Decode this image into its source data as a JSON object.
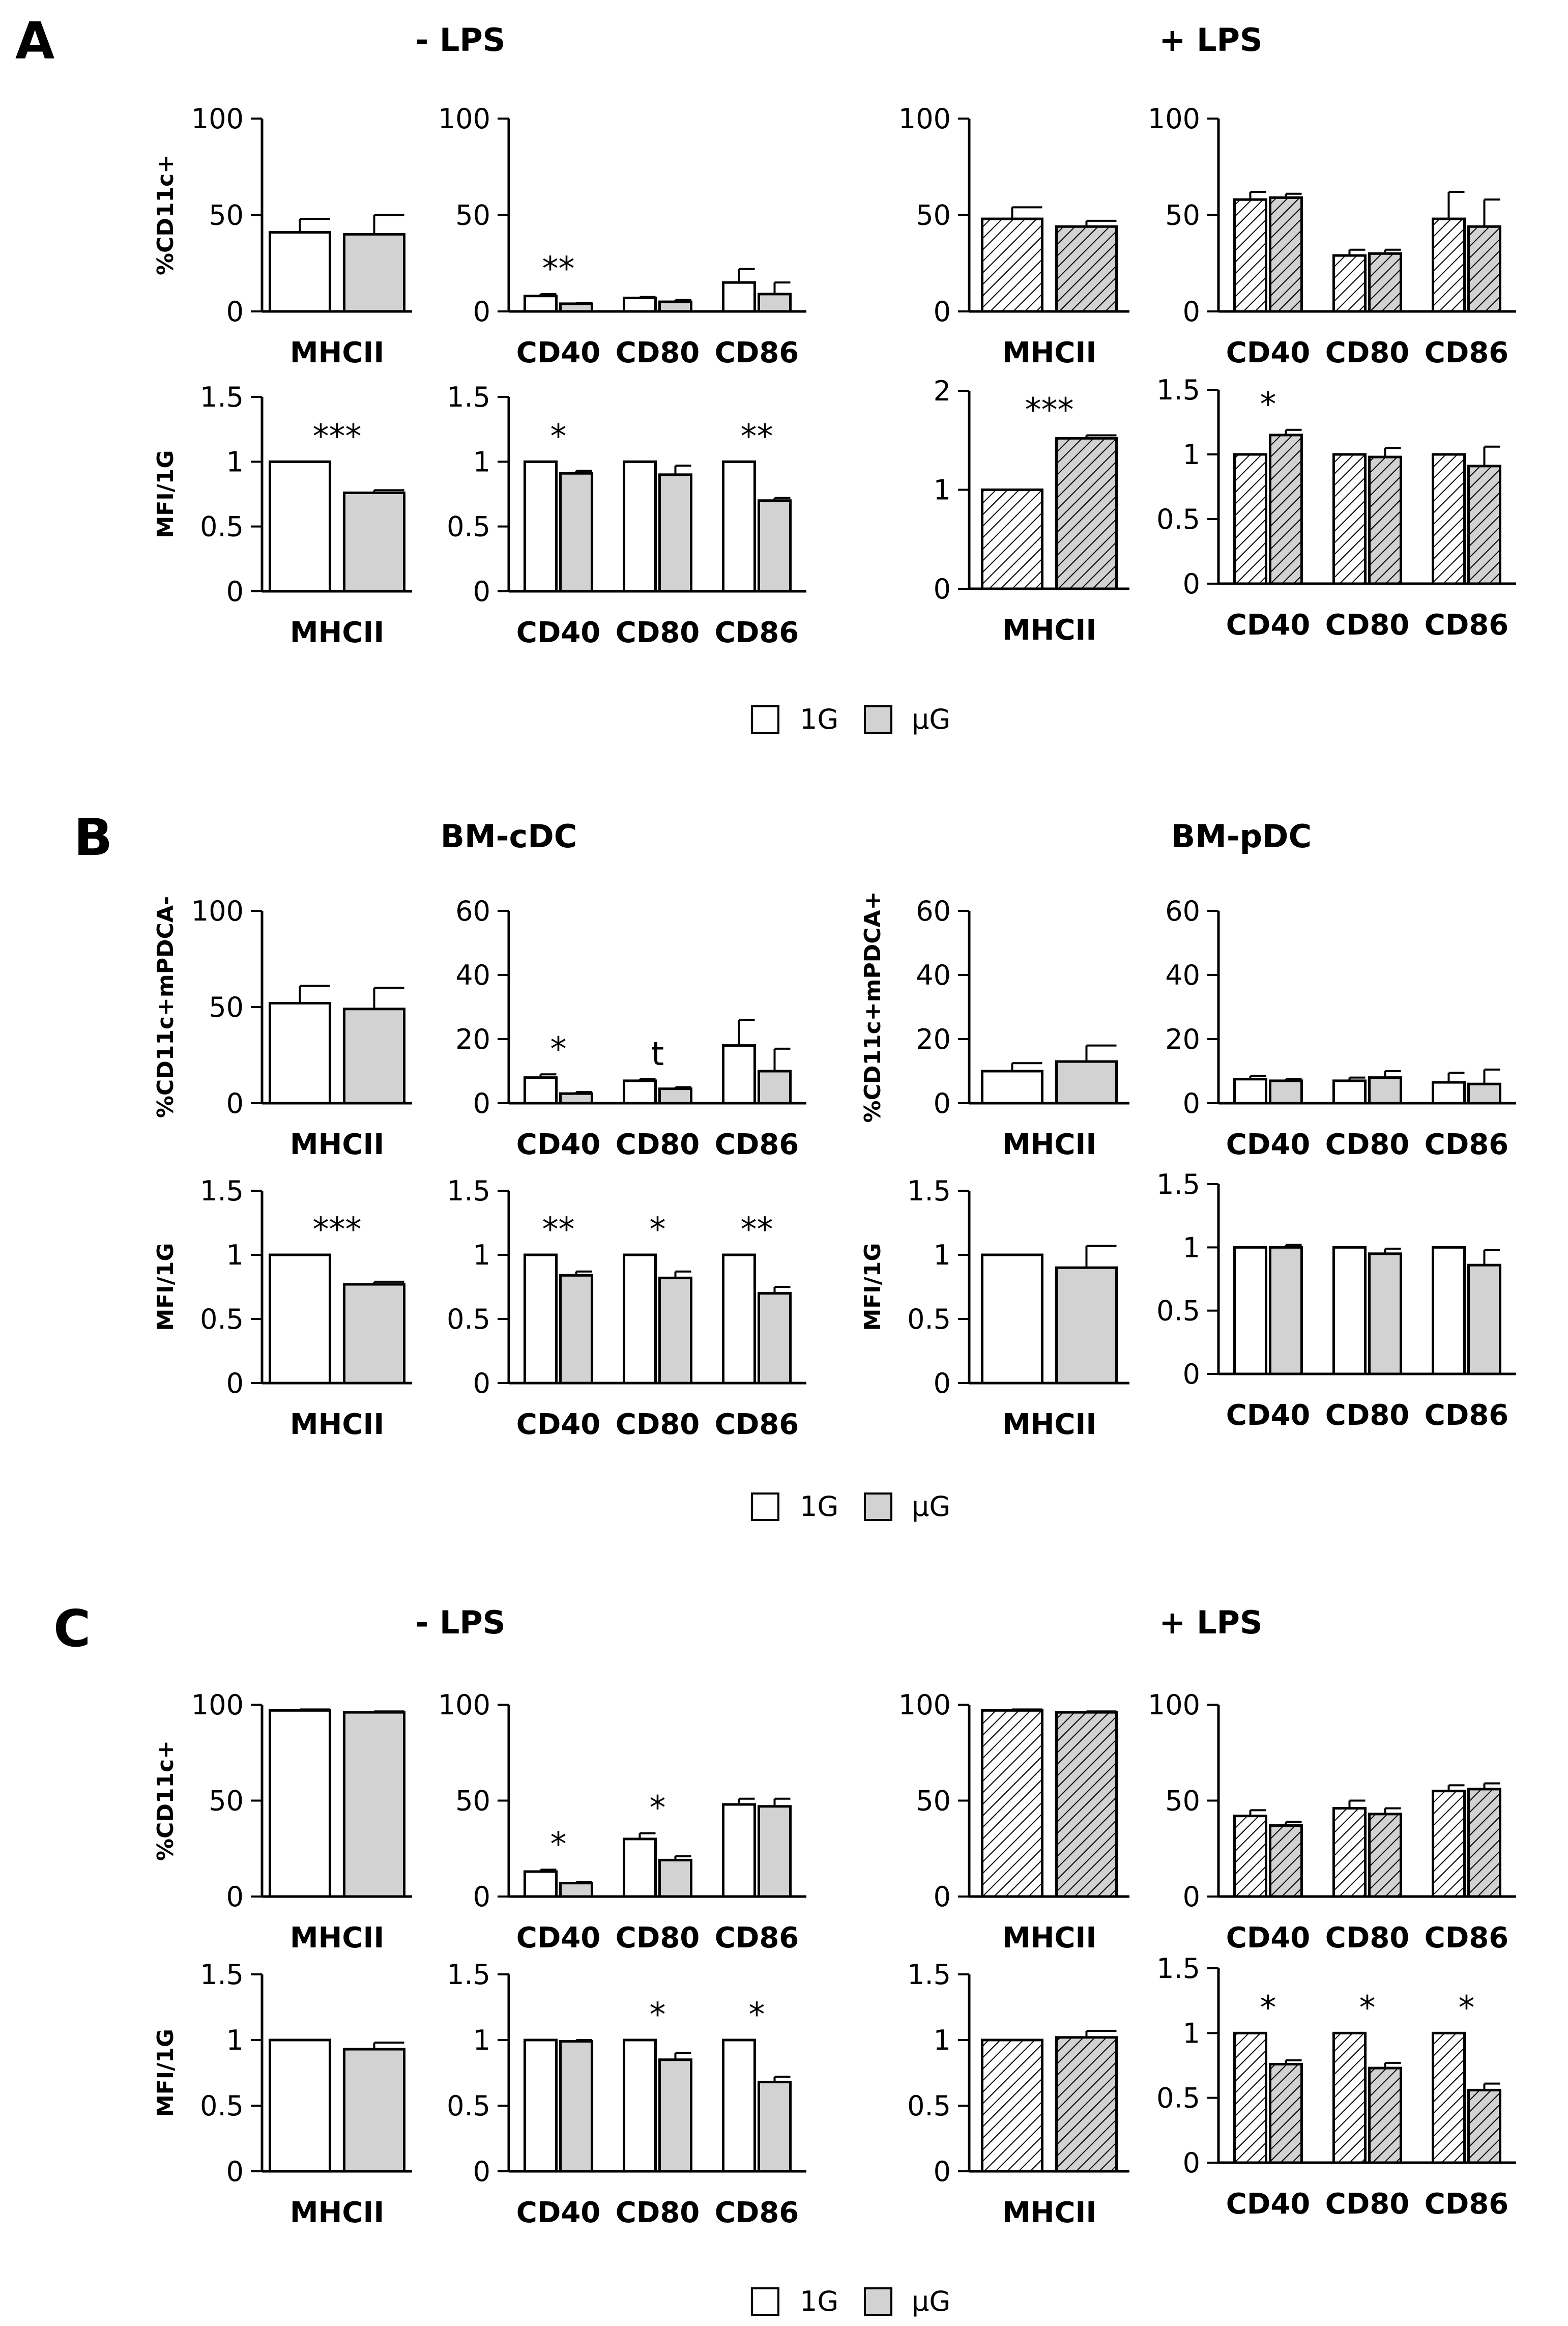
{
  "figure": {
    "colors": {
      "white": "#ffffff",
      "grey": "#d2d2d2",
      "axis": "#000000"
    },
    "panels": [
      {
        "letter": "A",
        "left_title": "- LPS",
        "right_title": "+ LPS",
        "legend": {
          "white_label": "1G",
          "grey_label": "μG"
        }
      },
      {
        "letter": "B",
        "left_title": "BM-cDC",
        "right_title": "BM-pDC",
        "legend": {
          "white_label": "1G",
          "grey_label": "μG"
        }
      },
      {
        "letter": "C",
        "left_title": "- LPS",
        "right_title": "+ LPS",
        "legend": {
          "white_label": "1G",
          "grey_label": "μG"
        }
      }
    ]
  },
  "chart_data": [
    {
      "panel": "A",
      "row": "percent",
      "condition": "- LPS",
      "type": "bar",
      "ylabel": "%CD11c+",
      "ylim": [
        0,
        100
      ],
      "yticks": [
        0,
        50,
        100
      ],
      "categories": [
        "MHCII"
      ],
      "series": [
        {
          "name": "1G",
          "values": [
            41
          ],
          "errors": [
            7
          ]
        },
        {
          "name": "μG",
          "values": [
            40
          ],
          "errors": [
            10
          ]
        }
      ],
      "hatched": false,
      "annotations": [
        ""
      ]
    },
    {
      "panel": "A",
      "row": "percent",
      "condition": "- LPS",
      "type": "bar",
      "ylabel": "",
      "ylim": [
        0,
        100
      ],
      "yticks": [
        0,
        50,
        100
      ],
      "categories": [
        "CD40",
        "CD80",
        "CD86"
      ],
      "series": [
        {
          "name": "1G",
          "values": [
            8,
            7,
            15
          ],
          "errors": [
            1,
            0.5,
            7
          ]
        },
        {
          "name": "μG",
          "values": [
            4,
            5,
            9
          ],
          "errors": [
            0.5,
            1,
            6
          ]
        }
      ],
      "hatched": false,
      "annotations": [
        "**",
        "",
        ""
      ]
    },
    {
      "panel": "A",
      "row": "percent",
      "condition": "+ LPS",
      "type": "bar",
      "ylabel": "",
      "ylim": [
        0,
        100
      ],
      "yticks": [
        0,
        50,
        100
      ],
      "categories": [
        "MHCII"
      ],
      "series": [
        {
          "name": "1G",
          "values": [
            48
          ],
          "errors": [
            6
          ]
        },
        {
          "name": "μG",
          "values": [
            44
          ],
          "errors": [
            3
          ]
        }
      ],
      "hatched": true,
      "annotations": [
        ""
      ]
    },
    {
      "panel": "A",
      "row": "percent",
      "condition": "+ LPS",
      "type": "bar",
      "ylabel": "",
      "ylim": [
        0,
        100
      ],
      "yticks": [
        0,
        50,
        100
      ],
      "categories": [
        "CD40",
        "CD80",
        "CD86"
      ],
      "series": [
        {
          "name": "1G",
          "values": [
            58,
            29,
            48
          ],
          "errors": [
            4,
            3,
            14
          ]
        },
        {
          "name": "μG",
          "values": [
            59,
            30,
            44
          ],
          "errors": [
            2,
            2,
            14
          ]
        }
      ],
      "hatched": true,
      "annotations": [
        "",
        "",
        ""
      ]
    },
    {
      "panel": "A",
      "row": "mfi",
      "condition": "- LPS",
      "type": "bar",
      "ylabel": "MFI/1G",
      "ylim": [
        0,
        1.5
      ],
      "yticks": [
        0,
        0.5,
        1,
        1.5
      ],
      "categories": [
        "MHCII"
      ],
      "series": [
        {
          "name": "1G",
          "values": [
            1
          ],
          "errors": [
            0
          ]
        },
        {
          "name": "μG",
          "values": [
            0.76
          ],
          "errors": [
            0.02
          ]
        }
      ],
      "hatched": false,
      "annotations": [
        "***"
      ]
    },
    {
      "panel": "A",
      "row": "mfi",
      "condition": "- LPS",
      "type": "bar",
      "ylabel": "",
      "ylim": [
        0,
        1.5
      ],
      "yticks": [
        0,
        0.5,
        1,
        1.5
      ],
      "categories": [
        "CD40",
        "CD80",
        "CD86"
      ],
      "series": [
        {
          "name": "1G",
          "values": [
            1,
            1,
            1
          ],
          "errors": [
            0,
            0,
            0
          ]
        },
        {
          "name": "μG",
          "values": [
            0.91,
            0.9,
            0.7
          ],
          "errors": [
            0.02,
            0.07,
            0.02
          ]
        }
      ],
      "hatched": false,
      "annotations": [
        "*",
        "",
        "**"
      ]
    },
    {
      "panel": "A",
      "row": "mfi",
      "condition": "+ LPS",
      "type": "bar",
      "ylabel": "",
      "ylim": [
        0,
        2
      ],
      "yticks": [
        0,
        1,
        2
      ],
      "categories": [
        "MHCII"
      ],
      "series": [
        {
          "name": "1G",
          "values": [
            1
          ],
          "errors": [
            0
          ]
        },
        {
          "name": "μG",
          "values": [
            1.52
          ],
          "errors": [
            0.03
          ]
        }
      ],
      "hatched": true,
      "annotations": [
        "***"
      ]
    },
    {
      "panel": "A",
      "row": "mfi",
      "condition": "+ LPS",
      "type": "bar",
      "ylabel": "",
      "ylim": [
        0,
        1.5
      ],
      "yticks": [
        0,
        0.5,
        1,
        1.5
      ],
      "categories": [
        "CD40",
        "CD80",
        "CD86"
      ],
      "series": [
        {
          "name": "1G",
          "values": [
            1,
            1,
            1
          ],
          "errors": [
            0,
            0,
            0
          ]
        },
        {
          "name": "μG",
          "values": [
            1.15,
            0.98,
            0.91
          ],
          "errors": [
            0.04,
            0.07,
            0.15
          ]
        }
      ],
      "hatched": true,
      "annotations": [
        "*",
        "",
        ""
      ]
    },
    {
      "panel": "B",
      "row": "percent",
      "condition": "BM-cDC",
      "type": "bar",
      "ylabel": "%CD11c+mPDCA-",
      "ylim": [
        0,
        100
      ],
      "yticks": [
        0,
        50,
        100
      ],
      "categories": [
        "MHCII"
      ],
      "series": [
        {
          "name": "1G",
          "values": [
            52
          ],
          "errors": [
            9
          ]
        },
        {
          "name": "μG",
          "values": [
            49
          ],
          "errors": [
            11
          ]
        }
      ],
      "hatched": false,
      "annotations": [
        ""
      ]
    },
    {
      "panel": "B",
      "row": "percent",
      "condition": "BM-cDC",
      "type": "bar",
      "ylabel": "",
      "ylim": [
        0,
        60
      ],
      "yticks": [
        0,
        20,
        40,
        60
      ],
      "categories": [
        "CD40",
        "CD80",
        "CD86"
      ],
      "series": [
        {
          "name": "1G",
          "values": [
            8,
            7,
            18
          ],
          "errors": [
            1,
            0.5,
            8
          ]
        },
        {
          "name": "μG",
          "values": [
            3,
            4.5,
            10
          ],
          "errors": [
            0.5,
            0.5,
            7
          ]
        }
      ],
      "hatched": false,
      "annotations": [
        "*",
        "t",
        ""
      ]
    },
    {
      "panel": "B",
      "row": "percent",
      "condition": "BM-pDC",
      "type": "bar",
      "ylabel": "%CD11c+mPDCA+",
      "ylim": [
        0,
        60
      ],
      "yticks": [
        0,
        20,
        40,
        60
      ],
      "categories": [
        "MHCII"
      ],
      "series": [
        {
          "name": "1G",
          "values": [
            10
          ],
          "errors": [
            2.5
          ]
        },
        {
          "name": "μG",
          "values": [
            13
          ],
          "errors": [
            5
          ]
        }
      ],
      "hatched": false,
      "annotations": [
        ""
      ]
    },
    {
      "panel": "B",
      "row": "percent",
      "condition": "BM-pDC",
      "type": "bar",
      "ylabel": "",
      "ylim": [
        0,
        60
      ],
      "yticks": [
        0,
        20,
        40,
        60
      ],
      "categories": [
        "CD40",
        "CD80",
        "CD86"
      ],
      "series": [
        {
          "name": "1G",
          "values": [
            7.5,
            7,
            6.5
          ],
          "errors": [
            1,
            1,
            3
          ]
        },
        {
          "name": "μG",
          "values": [
            7,
            8,
            6
          ],
          "errors": [
            0.5,
            2,
            4.5
          ]
        }
      ],
      "hatched": false,
      "annotations": [
        "",
        "",
        ""
      ]
    },
    {
      "panel": "B",
      "row": "mfi",
      "condition": "BM-cDC",
      "type": "bar",
      "ylabel": "MFI/1G",
      "ylim": [
        0,
        1.5
      ],
      "yticks": [
        0,
        0.5,
        1,
        1.5
      ],
      "categories": [
        "MHCII"
      ],
      "series": [
        {
          "name": "1G",
          "values": [
            1
          ],
          "errors": [
            0
          ]
        },
        {
          "name": "μG",
          "values": [
            0.77
          ],
          "errors": [
            0.02
          ]
        }
      ],
      "hatched": false,
      "annotations": [
        "***"
      ]
    },
    {
      "panel": "B",
      "row": "mfi",
      "condition": "BM-cDC",
      "type": "bar",
      "ylabel": "",
      "ylim": [
        0,
        1.5
      ],
      "yticks": [
        0,
        0.5,
        1,
        1.5
      ],
      "categories": [
        "CD40",
        "CD80",
        "CD86"
      ],
      "series": [
        {
          "name": "1G",
          "values": [
            1,
            1,
            1
          ],
          "errors": [
            0,
            0,
            0
          ]
        },
        {
          "name": "μG",
          "values": [
            0.84,
            0.82,
            0.7
          ],
          "errors": [
            0.03,
            0.05,
            0.05
          ]
        }
      ],
      "hatched": false,
      "annotations": [
        "**",
        "*",
        "**"
      ]
    },
    {
      "panel": "B",
      "row": "mfi",
      "condition": "BM-pDC",
      "type": "bar",
      "ylabel": "MFI/1G",
      "ylim": [
        0,
        1.5
      ],
      "yticks": [
        0,
        0.5,
        1,
        1.5
      ],
      "categories": [
        "MHCII"
      ],
      "series": [
        {
          "name": "1G",
          "values": [
            1
          ],
          "errors": [
            0
          ]
        },
        {
          "name": "μG",
          "values": [
            0.9
          ],
          "errors": [
            0.17
          ]
        }
      ],
      "hatched": false,
      "annotations": [
        ""
      ]
    },
    {
      "panel": "B",
      "row": "mfi",
      "condition": "BM-pDC",
      "type": "bar",
      "ylabel": "",
      "ylim": [
        0,
        1.5
      ],
      "yticks": [
        0,
        0.5,
        1,
        1.5
      ],
      "categories": [
        "CD40",
        "CD80",
        "CD86"
      ],
      "series": [
        {
          "name": "1G",
          "values": [
            1,
            1,
            1
          ],
          "errors": [
            0,
            0,
            0
          ]
        },
        {
          "name": "μG",
          "values": [
            1,
            0.95,
            0.86
          ],
          "errors": [
            0.02,
            0.04,
            0.12
          ]
        }
      ],
      "hatched": false,
      "annotations": [
        "",
        "",
        ""
      ]
    },
    {
      "panel": "C",
      "row": "percent",
      "condition": "- LPS",
      "type": "bar",
      "ylabel": "%CD11c+",
      "ylim": [
        0,
        100
      ],
      "yticks": [
        0,
        50,
        100
      ],
      "categories": [
        "MHCII"
      ],
      "series": [
        {
          "name": "1G",
          "values": [
            97
          ],
          "errors": [
            0.5
          ]
        },
        {
          "name": "μG",
          "values": [
            96
          ],
          "errors": [
            0.5
          ]
        }
      ],
      "hatched": false,
      "annotations": [
        ""
      ]
    },
    {
      "panel": "C",
      "row": "percent",
      "condition": "- LPS",
      "type": "bar",
      "ylabel": "",
      "ylim": [
        0,
        100
      ],
      "yticks": [
        0,
        50,
        100
      ],
      "categories": [
        "CD40",
        "CD80",
        "CD86"
      ],
      "series": [
        {
          "name": "1G",
          "values": [
            13,
            30,
            48
          ],
          "errors": [
            1,
            3,
            3
          ]
        },
        {
          "name": "μG",
          "values": [
            7,
            19,
            47
          ],
          "errors": [
            0.5,
            2,
            4
          ]
        }
      ],
      "hatched": false,
      "annotations": [
        "*",
        "*",
        ""
      ]
    },
    {
      "panel": "C",
      "row": "percent",
      "condition": "+ LPS",
      "type": "bar",
      "ylabel": "",
      "ylim": [
        0,
        100
      ],
      "yticks": [
        0,
        50,
        100
      ],
      "categories": [
        "MHCII"
      ],
      "series": [
        {
          "name": "1G",
          "values": [
            97
          ],
          "errors": [
            0.5
          ]
        },
        {
          "name": "μG",
          "values": [
            96
          ],
          "errors": [
            0.5
          ]
        }
      ],
      "hatched": true,
      "annotations": [
        ""
      ]
    },
    {
      "panel": "C",
      "row": "percent",
      "condition": "+ LPS",
      "type": "bar",
      "ylabel": "",
      "ylim": [
        0,
        100
      ],
      "yticks": [
        0,
        50,
        100
      ],
      "categories": [
        "CD40",
        "CD80",
        "CD86"
      ],
      "series": [
        {
          "name": "1G",
          "values": [
            42,
            46,
            55
          ],
          "errors": [
            3,
            4,
            3
          ]
        },
        {
          "name": "μG",
          "values": [
            37,
            43,
            56
          ],
          "errors": [
            2,
            3,
            3
          ]
        }
      ],
      "hatched": true,
      "annotations": [
        "",
        "",
        ""
      ]
    },
    {
      "panel": "C",
      "row": "mfi",
      "condition": "- LPS",
      "type": "bar",
      "ylabel": "MFI/1G",
      "ylim": [
        0,
        1.5
      ],
      "yticks": [
        0,
        0.5,
        1,
        1.5
      ],
      "categories": [
        "MHCII"
      ],
      "series": [
        {
          "name": "1G",
          "values": [
            1
          ],
          "errors": [
            0
          ]
        },
        {
          "name": "μG",
          "values": [
            0.93
          ],
          "errors": [
            0.05
          ]
        }
      ],
      "hatched": false,
      "annotations": [
        ""
      ]
    },
    {
      "panel": "C",
      "row": "mfi",
      "condition": "- LPS",
      "type": "bar",
      "ylabel": "",
      "ylim": [
        0,
        1.5
      ],
      "yticks": [
        0,
        0.5,
        1,
        1.5
      ],
      "categories": [
        "CD40",
        "CD80",
        "CD86"
      ],
      "series": [
        {
          "name": "1G",
          "values": [
            1,
            1,
            1
          ],
          "errors": [
            0,
            0,
            0
          ]
        },
        {
          "name": "μG",
          "values": [
            0.99,
            0.85,
            0.68
          ],
          "errors": [
            0.01,
            0.05,
            0.04
          ]
        }
      ],
      "hatched": false,
      "annotations": [
        "",
        "*",
        "*"
      ]
    },
    {
      "panel": "C",
      "row": "mfi",
      "condition": "+ LPS",
      "type": "bar",
      "ylabel": "",
      "ylim": [
        0,
        1.5
      ],
      "yticks": [
        0,
        0.5,
        1,
        1.5
      ],
      "categories": [
        "MHCII"
      ],
      "series": [
        {
          "name": "1G",
          "values": [
            1
          ],
          "errors": [
            0
          ]
        },
        {
          "name": "μG",
          "values": [
            1.02
          ],
          "errors": [
            0.05
          ]
        }
      ],
      "hatched": true,
      "annotations": [
        ""
      ]
    },
    {
      "panel": "C",
      "row": "mfi",
      "condition": "+ LPS",
      "type": "bar",
      "ylabel": "",
      "ylim": [
        0,
        1.5
      ],
      "yticks": [
        0,
        0.5,
        1,
        1.5
      ],
      "categories": [
        "CD40",
        "CD80",
        "CD86"
      ],
      "series": [
        {
          "name": "1G",
          "values": [
            1,
            1,
            1
          ],
          "errors": [
            0,
            0,
            0
          ]
        },
        {
          "name": "μG",
          "values": [
            0.76,
            0.73,
            0.56
          ],
          "errors": [
            0.03,
            0.04,
            0.05
          ]
        }
      ],
      "hatched": true,
      "annotations": [
        "*",
        "*",
        "*"
      ]
    }
  ]
}
